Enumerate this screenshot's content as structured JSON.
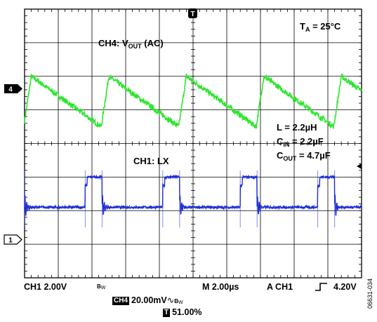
{
  "chart_data": {
    "type": "line",
    "title": "",
    "settings": {
      "ambient": "T_A = 25°C",
      "inductor": "L = 2.2µH",
      "c_in": "C_IN = 2.2µF",
      "c_out": "C_OUT = 4.7µF"
    },
    "grid": true,
    "grid_divisions": {
      "x": 10,
      "y": 8
    },
    "x": {
      "unit": "µs",
      "range": [
        0,
        20
      ],
      "per_div": 2.0
    },
    "series": [
      {
        "name": "CH4: V_OUT (AC)",
        "channel_marker": "4",
        "color": "#2ee62e",
        "unit": "mV",
        "per_div": 20.0,
        "offset_div": 2.5,
        "period_us": 4.6,
        "peaks_us": [
          0.4,
          5.0,
          9.6,
          14.2,
          18.8
        ],
        "peak_mV": 10,
        "valley_mV": -20
      },
      {
        "name": "CH1: LX",
        "channel_marker": "1",
        "color": "#1f2ed6",
        "unit": "V",
        "per_div": 2.0,
        "offset_div": -2.8,
        "period_us": 4.6,
        "high_start_us": [
          -1.0,
          3.6,
          8.2,
          12.8,
          17.4
        ],
        "high_duration_us": 1.0,
        "high_V": 3.6,
        "low_V": 1.8
      }
    ],
    "channel_labels": {
      "ch4": "CH4: V",
      "ch4_sub": "OUT",
      "ch4_suffix": "(AC)",
      "ch1": "CH1: LX"
    },
    "trigger_marker": "T"
  },
  "status": {
    "ch1_scale": "CH1  2.00V",
    "ch1_bw": "B",
    "ch1_bw_sub": "W",
    "timebase": "M 2.00µs",
    "trigger": "A  CH1",
    "trigger_level": "4.20V",
    "ch4_box": "CH4",
    "ch4_scale": "20.00mV",
    "ch4_bw": "B",
    "ch4_bw_sub": "W",
    "trigger_position_box": "T",
    "trigger_position": "51.00%"
  },
  "figure_id": "06631-034"
}
